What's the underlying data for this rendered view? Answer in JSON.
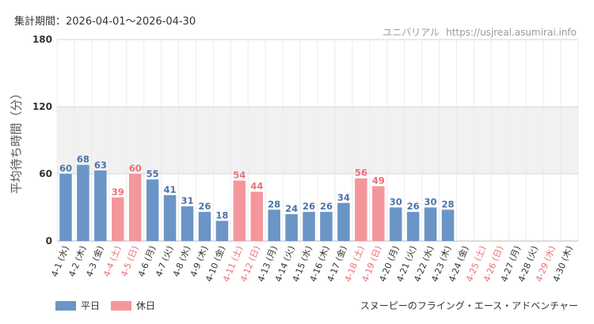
{
  "header": {
    "period": "集計期間：2026-04-01～2026-04-30",
    "credit_name": "ユニバリアル",
    "credit_url": "https://usjreal.asumirai.info"
  },
  "legend": {
    "weekday_label": "平日",
    "holiday_label": "休日",
    "weekday_color": "#6a95c6",
    "holiday_color": "#f4979c"
  },
  "attraction": "スヌーピーのフライング・エース・アドベンチャー",
  "chart_data": {
    "type": "bar",
    "title": "",
    "ylabel": "平均待ち時間（分）",
    "xlabel": "",
    "ylim": [
      0,
      180
    ],
    "yticks": [
      0,
      60,
      120,
      180
    ],
    "grid": true,
    "shaded_band": [
      60,
      120
    ],
    "categories": [
      "4-1 (水)",
      "4-2 (木)",
      "4-3 (金)",
      "4-4 (土)",
      "4-5 (日)",
      "4-6 (月)",
      "4-7 (火)",
      "4-8 (水)",
      "4-9 (木)",
      "4-10 (金)",
      "4-11 (土)",
      "4-12 (日)",
      "4-13 (月)",
      "4-14 (火)",
      "4-15 (水)",
      "4-16 (木)",
      "4-17 (金)",
      "4-18 (土)",
      "4-19 (日)",
      "4-20 (月)",
      "4-21 (火)",
      "4-22 (水)",
      "4-23 (木)",
      "4-24 (金)",
      "4-25 (土)",
      "4-26 (日)",
      "4-27 (月)",
      "4-28 (火)",
      "4-29 (水)",
      "4-30 (木)"
    ],
    "values": [
      60,
      68,
      63,
      39,
      60,
      55,
      41,
      31,
      26,
      18,
      54,
      44,
      28,
      24,
      26,
      26,
      34,
      56,
      49,
      30,
      26,
      30,
      28,
      null,
      null,
      null,
      null,
      null,
      null,
      null
    ],
    "holiday": [
      false,
      false,
      false,
      true,
      true,
      false,
      false,
      false,
      false,
      false,
      true,
      true,
      false,
      false,
      false,
      false,
      false,
      true,
      true,
      false,
      false,
      false,
      false,
      false,
      true,
      true,
      false,
      false,
      true,
      false
    ],
    "series": [
      {
        "name": "平日",
        "color": "#6a95c6"
      },
      {
        "name": "休日",
        "color": "#f4979c"
      }
    ],
    "label_colors": {
      "weekday": "#4a74a8",
      "holiday": "#ee6e74",
      "tick_weekday": "#333333",
      "tick_holiday": "#ee6e74"
    }
  }
}
